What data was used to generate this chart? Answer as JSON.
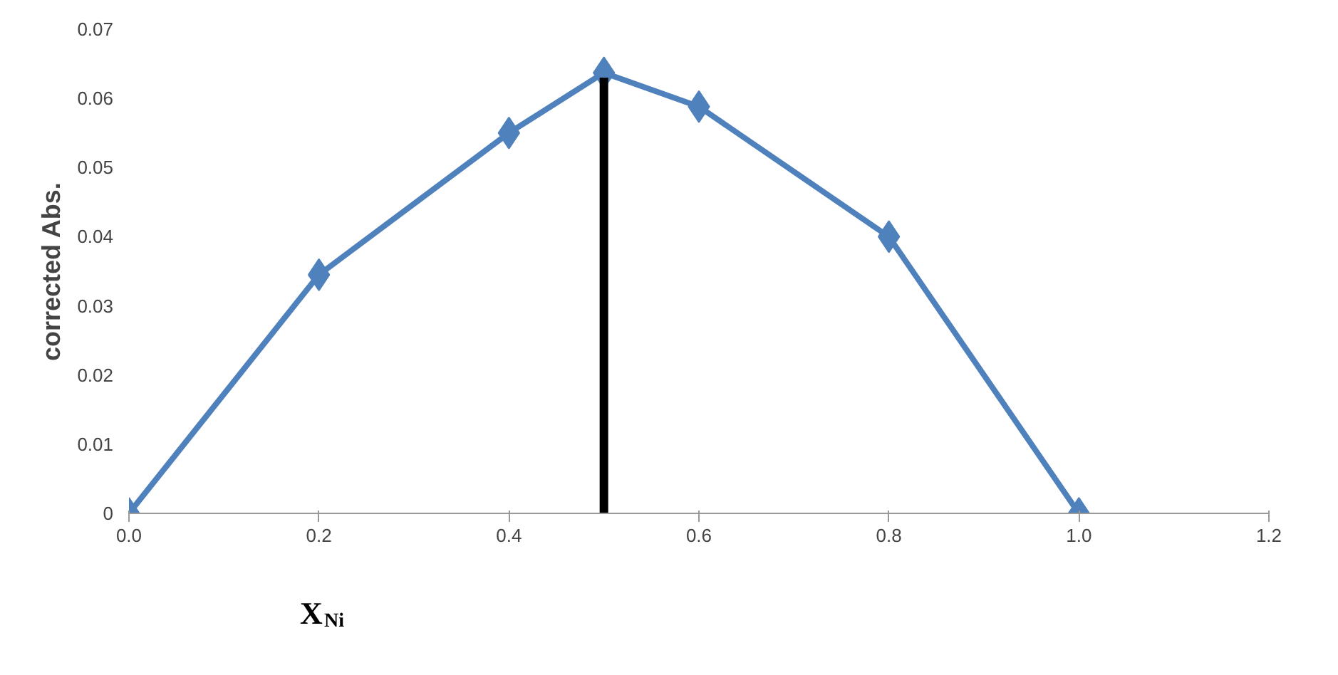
{
  "chart_data": {
    "type": "line",
    "xlabel": "X$_{Ni}$",
    "ylabel": "corrected Abs.",
    "x": [
      0.0,
      0.2,
      0.4,
      0.5,
      0.6,
      0.8,
      1.0
    ],
    "series": [
      {
        "color": "#4f81bd",
        "values": [
          0,
          0.0345,
          0.055,
          0.0637,
          0.0588,
          0.04,
          0
        ],
        "marker": "diamond"
      },
      {
        "type": "line",
        "color": "#000000",
        "x": [
          0.5,
          0.5
        ],
        "values": [
          0,
          0.063
        ],
        "marker": "none"
      }
    ],
    "xlim": [
      0,
      1.2
    ],
    "ylim": [
      0,
      0.07
    ],
    "xticks": [
      {
        "value": 0,
        "label": "0.0"
      },
      0.2,
      0.4,
      0.6,
      0.8,
      {
        "value": 1.0,
        "label": "1.0"
      },
      1.2
    ],
    "yticks": [
      0,
      0.01,
      0.02,
      0.03,
      0.04,
      0.05,
      0.06,
      0.07
    ],
    "grid": false
  }
}
